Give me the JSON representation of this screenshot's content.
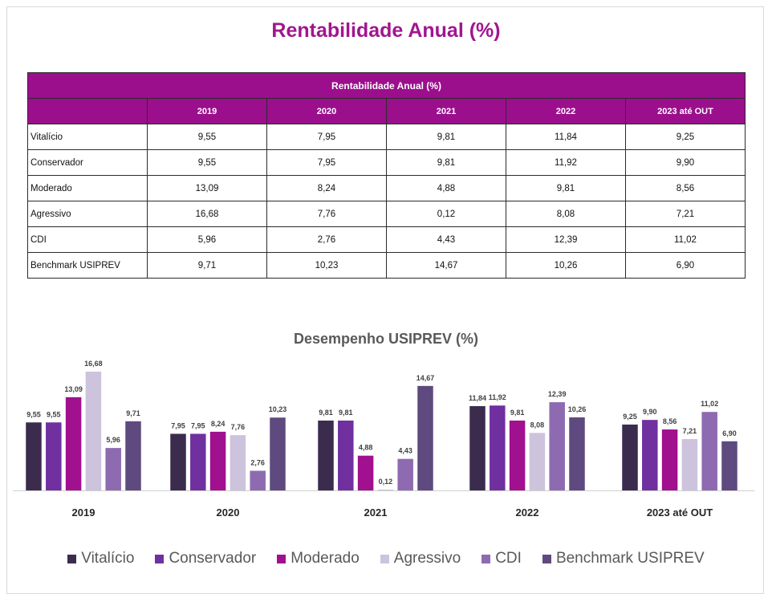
{
  "page": {
    "title": "Rentabilidade Anual (%)"
  },
  "table": {
    "caption": "Rentabilidade Anual (%)",
    "headers": [
      "2019",
      "2020",
      "2021",
      "2022",
      "2023 até OUT"
    ],
    "rows": [
      {
        "label": "Vitalício",
        "values": [
          "9,55",
          "7,95",
          "9,81",
          "11,84",
          "9,25"
        ]
      },
      {
        "label": "Conservador",
        "values": [
          "9,55",
          "7,95",
          "9,81",
          "11,92",
          "9,90"
        ]
      },
      {
        "label": "Moderado",
        "values": [
          "13,09",
          "8,24",
          "4,88",
          "9,81",
          "8,56"
        ]
      },
      {
        "label": "Agressivo",
        "values": [
          "16,68",
          "7,76",
          "0,12",
          "8,08",
          "7,21"
        ]
      },
      {
        "label": "CDI",
        "values": [
          "5,96",
          "2,76",
          "4,43",
          "12,39",
          "11,02"
        ]
      },
      {
        "label": "Benchmark USIPREV",
        "values": [
          "9,71",
          "10,23",
          "14,67",
          "10,26",
          "6,90"
        ]
      }
    ]
  },
  "chart_data": {
    "type": "bar",
    "title": "Desempenho USIPREV (%)",
    "categories": [
      "2019",
      "2020",
      "2021",
      "2022",
      "2023 até OUT"
    ],
    "series": [
      {
        "name": "Vitalício",
        "color": "#3b2c4e",
        "values": [
          9.55,
          7.95,
          9.81,
          11.84,
          9.25
        ],
        "labels": [
          "9,55",
          "7,95",
          "9,81",
          "11,84",
          "9,25"
        ]
      },
      {
        "name": "Conservador",
        "color": "#7030a0",
        "values": [
          9.55,
          7.95,
          9.81,
          11.92,
          9.9
        ],
        "labels": [
          "9,55",
          "7,95",
          "9,81",
          "11,92",
          "9,90"
        ]
      },
      {
        "name": "Moderado",
        "color": "#a0108f",
        "values": [
          13.09,
          8.24,
          4.88,
          9.81,
          8.56
        ],
        "labels": [
          "13,09",
          "8,24",
          "4,88",
          "9,81",
          "8,56"
        ]
      },
      {
        "name": "Agressivo",
        "color": "#cdc3dc",
        "values": [
          16.68,
          7.76,
          0.12,
          8.08,
          7.21
        ],
        "labels": [
          "16,68",
          "7,76",
          "0,12",
          "8,08",
          "7,21"
        ]
      },
      {
        "name": "CDI",
        "color": "#8e6bb0",
        "values": [
          5.96,
          2.76,
          4.43,
          12.39,
          11.02
        ],
        "labels": [
          "5,96",
          "2,76",
          "4,43",
          "12,39",
          "11,02"
        ]
      },
      {
        "name": "Benchmark USIPREV",
        "color": "#5e4a7e",
        "values": [
          9.71,
          10.23,
          14.67,
          10.26,
          6.9
        ],
        "labels": [
          "9,71",
          "10,23",
          "14,67",
          "10,26",
          "6,90"
        ]
      }
    ],
    "ylim": [
      0,
      16.68
    ],
    "grid": false,
    "legend_position": "bottom"
  }
}
